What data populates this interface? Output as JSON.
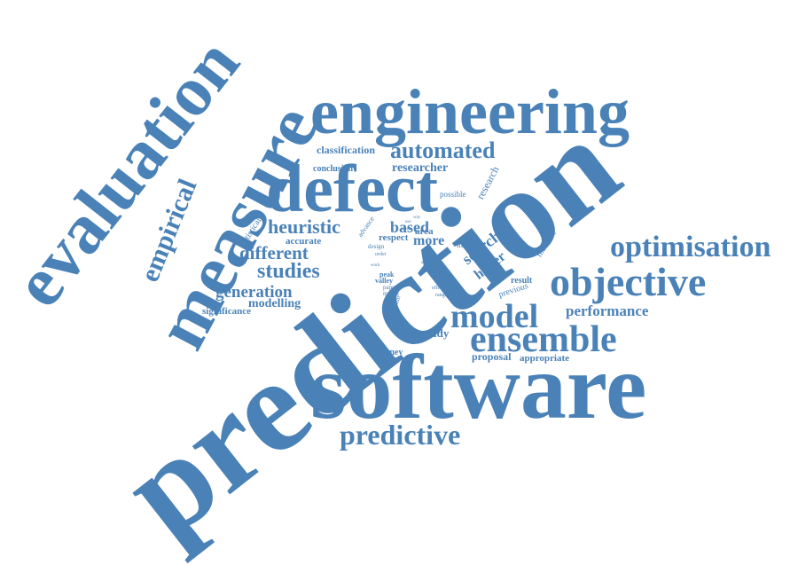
{
  "accent_color": "#4a82b8",
  "words": [
    {
      "text": "prediction"
    },
    {
      "text": "software"
    },
    {
      "text": "evaluation"
    },
    {
      "text": "measure"
    },
    {
      "text": "engineering"
    },
    {
      "text": "defect"
    },
    {
      "text": "empirical"
    },
    {
      "text": "objective"
    },
    {
      "text": "optimisation"
    },
    {
      "text": "model"
    },
    {
      "text": "ensemble"
    },
    {
      "text": "predictive"
    },
    {
      "text": "automated"
    },
    {
      "text": "heuristic"
    },
    {
      "text": "different"
    },
    {
      "text": "studies"
    },
    {
      "text": "generation"
    },
    {
      "text": "modelling"
    },
    {
      "text": "performance"
    },
    {
      "text": "based"
    },
    {
      "text": "more"
    },
    {
      "text": "search"
    },
    {
      "text": "hyper"
    },
    {
      "text": "classification"
    },
    {
      "text": "researcher"
    },
    {
      "text": "conclusion"
    },
    {
      "text": "research"
    },
    {
      "text": "possible"
    },
    {
      "text": "machine"
    },
    {
      "text": "increase"
    },
    {
      "text": "result"
    },
    {
      "text": "previous"
    },
    {
      "text": "accurate"
    },
    {
      "text": "statistical"
    },
    {
      "text": "significance"
    },
    {
      "text": "study"
    },
    {
      "text": "journey"
    },
    {
      "text": "proposal"
    },
    {
      "text": "appropriate"
    },
    {
      "text": "area"
    },
    {
      "text": "respect"
    },
    {
      "text": "design"
    },
    {
      "text": "advance"
    },
    {
      "text": "peak"
    },
    {
      "text": "valley"
    },
    {
      "text": "paper"
    },
    {
      "text": "matrix"
    },
    {
      "text": "popular"
    },
    {
      "text": "data"
    },
    {
      "text": "case"
    },
    {
      "text": "effect"
    },
    {
      "text": "range"
    },
    {
      "text": "order"
    },
    {
      "text": "work"
    },
    {
      "text": "use"
    },
    {
      "text": "way"
    },
    {
      "text": "most"
    },
    {
      "text": "ass"
    }
  ]
}
